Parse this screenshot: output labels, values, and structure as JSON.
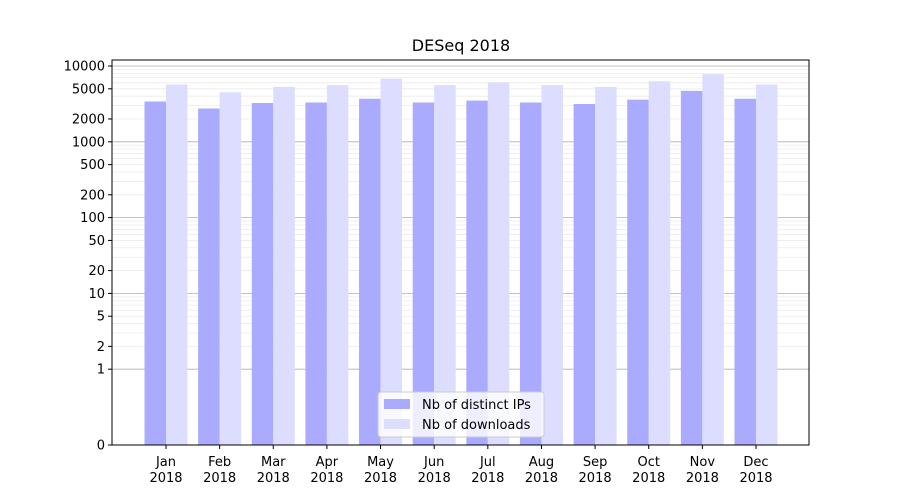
{
  "chart_data": {
    "type": "bar",
    "title": "DESeq 2018",
    "xlabel": "",
    "ylabel": "",
    "y_scale": "symlog",
    "ylim": [
      0,
      12000
    ],
    "y_ticks": [
      0,
      1,
      2,
      5,
      10,
      20,
      50,
      100,
      200,
      500,
      1000,
      2000,
      5000,
      10000
    ],
    "grid": "horizontal",
    "legend_position": "bottom-center",
    "categories": [
      "Jan\n2018",
      "Feb\n2018",
      "Mar\n2018",
      "Apr\n2018",
      "May\n2018",
      "Jun\n2018",
      "Jul\n2018",
      "Aug\n2018",
      "Sep\n2018",
      "Oct\n2018",
      "Nov\n2018",
      "Dec\n2018"
    ],
    "series": [
      {
        "name": "Nb of distinct IPs",
        "color": "#aaaaff",
        "values": [
          3400,
          2750,
          3250,
          3300,
          3700,
          3300,
          3500,
          3300,
          3150,
          3600,
          4700,
          3700
        ]
      },
      {
        "name": "Nb of downloads",
        "color": "#ddddff",
        "values": [
          5700,
          4500,
          5300,
          5600,
          6800,
          5600,
          6100,
          5600,
          5300,
          6300,
          7800,
          5700
        ]
      }
    ]
  }
}
